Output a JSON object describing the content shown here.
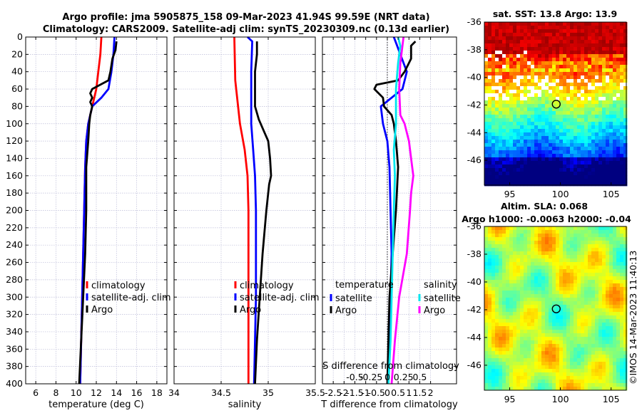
{
  "header": {
    "title_line1": "Argo profile: jma 5905875_158 09-Mar-2023 41.94S 99.59E (NRT data)",
    "title_line2": "Climatology: CARS2009. Satellite-adj clim: synTS_20230309.nc (0.13d earlier)"
  },
  "footer": {
    "stamp": "©IMOS 14-Mar-2023 11:40:13"
  },
  "colors": {
    "climatology": "#ff0000",
    "satellite": "#0000ff",
    "argo": "#000000",
    "satellite_s": "#00e5ee",
    "argo_s": "#ff00ff"
  },
  "chart_data": [
    {
      "type": "line",
      "name": "temperature",
      "xlabel": "temperature (deg C)",
      "ylabel": "",
      "xlim": [
        5,
        19
      ],
      "ylim": [
        400,
        0
      ],
      "x_ticks": [
        "6",
        "8",
        "10",
        "12",
        "14",
        "16",
        "18"
      ],
      "x_tick_values": [
        6,
        8,
        10,
        12,
        14,
        16,
        18
      ],
      "y_ticks": [
        "0",
        "20",
        "40",
        "60",
        "80",
        "100",
        "120",
        "140",
        "160",
        "180",
        "200",
        "220",
        "240",
        "260",
        "280",
        "300",
        "320",
        "340",
        "360",
        "380",
        "400"
      ],
      "y_tick_values": [
        0,
        20,
        40,
        60,
        80,
        100,
        120,
        140,
        160,
        180,
        200,
        220,
        240,
        260,
        280,
        300,
        320,
        340,
        360,
        380,
        400
      ],
      "legend": [
        "climatology",
        "satellite-adj. clim",
        "Argo"
      ],
      "series": [
        {
          "name": "climatology",
          "color": "#ff0000",
          "depth": [
            0,
            20,
            40,
            60,
            80,
            100,
            120,
            150,
            200,
            250,
            300,
            350,
            400
          ],
          "values": [
            12.5,
            12.4,
            12.2,
            12.0,
            11.6,
            11.2,
            11.0,
            10.9,
            10.8,
            10.7,
            10.6,
            10.5,
            10.4
          ]
        },
        {
          "name": "satellite-adj. clim",
          "color": "#0000ff",
          "depth": [
            0,
            20,
            40,
            60,
            70,
            80,
            90,
            100,
            120,
            150,
            200,
            250,
            300,
            350,
            400
          ],
          "values": [
            13.8,
            13.7,
            13.5,
            13.2,
            12.5,
            11.6,
            11.4,
            11.2,
            11.0,
            10.9,
            10.8,
            10.7,
            10.6,
            10.5,
            10.4
          ]
        },
        {
          "name": "Argo",
          "color": "#000000",
          "depth": [
            5,
            15,
            25,
            40,
            50,
            60,
            65,
            70,
            75,
            80,
            90,
            100,
            120,
            150,
            200,
            250,
            300,
            350,
            400
          ],
          "values": [
            14.0,
            13.9,
            13.6,
            13.4,
            13.2,
            11.6,
            11.4,
            11.6,
            11.4,
            11.6,
            11.4,
            11.3,
            11.2,
            11.0,
            11.0,
            10.9,
            10.7,
            10.5,
            10.3
          ]
        }
      ]
    },
    {
      "type": "line",
      "name": "salinity",
      "xlabel": "salinity",
      "xlim": [
        34.0,
        35.5
      ],
      "ylim": [
        400,
        0
      ],
      "x_ticks": [
        "34",
        "34.5",
        "35",
        "35.5"
      ],
      "x_tick_values": [
        34.0,
        34.5,
        35.0,
        35.5
      ],
      "legend": [
        "climatology",
        "satellite-adj. clim",
        "Argo"
      ],
      "series": [
        {
          "name": "climatology",
          "color": "#ff0000",
          "depth": [
            0,
            50,
            100,
            130,
            160,
            200,
            250,
            300,
            350,
            400
          ],
          "values": [
            34.64,
            34.65,
            34.7,
            34.75,
            34.78,
            34.79,
            34.79,
            34.79,
            34.79,
            34.79
          ]
        },
        {
          "name": "satellite-adj. clim",
          "color": "#0000ff",
          "depth": [
            0,
            5,
            40,
            100,
            130,
            160,
            200,
            250,
            300,
            350,
            400
          ],
          "values": [
            34.78,
            34.83,
            34.82,
            34.82,
            34.84,
            34.86,
            34.87,
            34.87,
            34.87,
            34.86,
            34.85
          ]
        },
        {
          "name": "Argo",
          "color": "#000000",
          "depth": [
            5,
            20,
            40,
            60,
            80,
            95,
            110,
            120,
            140,
            160,
            170,
            200,
            250,
            300,
            350,
            400
          ],
          "values": [
            34.88,
            34.88,
            34.86,
            34.86,
            34.86,
            34.9,
            34.96,
            35.0,
            35.02,
            35.03,
            35.01,
            34.98,
            34.94,
            34.91,
            34.88,
            34.86
          ]
        }
      ]
    },
    {
      "type": "line",
      "name": "difference",
      "xlabel": "T difference from climatology",
      "xlabel2": "S difference from climatology",
      "xlim": [
        -3,
        3.2
      ],
      "ylim": [
        400,
        0
      ],
      "x_ticks": [
        "-2.5",
        "-2",
        "-1.5",
        "-1",
        "-0.5",
        "0",
        "0.5",
        "1",
        "1.5",
        "2"
      ],
      "x_tick_values": [
        -2.5,
        -2,
        -1.5,
        -1,
        -0.5,
        0,
        0.5,
        1,
        1.5,
        2
      ],
      "s_ticks": [
        "-0.5",
        "-0.25",
        "0",
        "0.25",
        "0.5"
      ],
      "s_tick_values": [
        -1.5,
        -0.75,
        0,
        0.75,
        1.5
      ],
      "legend_temperature": [
        "temperature",
        "satellite",
        "Argo"
      ],
      "legend_salinity": [
        "salinity",
        "satellite",
        "Argo"
      ],
      "series": [
        {
          "name": "T satellite",
          "color": "#0000ff",
          "depth": [
            0,
            20,
            40,
            60,
            80,
            100,
            120,
            150,
            200,
            250,
            300,
            350,
            400
          ],
          "values": [
            0.3,
            0.6,
            0.9,
            0.7,
            -0.3,
            -0.2,
            0.0,
            0.1,
            0.15,
            0.2,
            0.15,
            0.1,
            0.05
          ]
        },
        {
          "name": "T Argo",
          "color": "#000000",
          "depth": [
            5,
            10,
            25,
            40,
            50,
            55,
            60,
            70,
            80,
            90,
            100,
            120,
            150,
            200,
            250,
            300,
            350,
            400
          ],
          "values": [
            1.3,
            1.1,
            1.1,
            0.8,
            0.5,
            -0.5,
            -0.6,
            -0.2,
            -0.15,
            0.2,
            0.3,
            0.4,
            0.5,
            0.4,
            0.25,
            0.1,
            0.05,
            0.0
          ]
        },
        {
          "name": "S satellite",
          "color": "#00e5ee",
          "depth": [
            0,
            10,
            30,
            60,
            100,
            130,
            160,
            200,
            250,
            300,
            350,
            400
          ],
          "values": [
            0.5,
            0.6,
            0.5,
            0.4,
            0.4,
            0.3,
            0.35,
            0.3,
            0.25,
            0.2,
            0.15,
            0.05
          ]
        },
        {
          "name": "S Argo",
          "color": "#ff00ff",
          "depth": [
            0,
            30,
            60,
            90,
            100,
            120,
            140,
            160,
            180,
            200,
            250,
            300,
            350,
            400
          ],
          "values": [
            0.75,
            0.6,
            0.55,
            0.6,
            0.8,
            1.0,
            1.1,
            1.2,
            1.1,
            1.05,
            0.9,
            0.55,
            0.35,
            0.2
          ]
        }
      ]
    },
    {
      "type": "heatmap",
      "name": "sst_map",
      "title": "sat. SST: 13.8 Argo: 13.9",
      "xlim": [
        92.5,
        106.5
      ],
      "ylim": [
        -47.8,
        -36
      ],
      "x_ticks": [
        "95",
        "100",
        "105"
      ],
      "x_tick_values": [
        95,
        100,
        105
      ],
      "y_ticks": [
        "-36",
        "-38",
        "-40",
        "-42",
        "-44",
        "-46"
      ],
      "y_tick_values": [
        -36,
        -38,
        -40,
        -42,
        -44,
        -46
      ],
      "marker": {
        "lon": 99.59,
        "lat": -41.94
      }
    },
    {
      "type": "heatmap",
      "name": "sla_map",
      "title_line1": "Altim. SLA: 0.068",
      "title_line2": "Argo h1000: -0.0063 h2000: -0.04",
      "xlim": [
        92.5,
        106.5
      ],
      "ylim": [
        -47.8,
        -36
      ],
      "x_ticks": [
        "95",
        "100",
        "105"
      ],
      "x_tick_values": [
        95,
        100,
        105
      ],
      "y_ticks": [
        "-36",
        "-38",
        "-40",
        "-42",
        "-44",
        "-46"
      ],
      "y_tick_values": [
        -36,
        -38,
        -40,
        -42,
        -44,
        -46
      ],
      "marker": {
        "lon": 99.59,
        "lat": -41.94
      }
    }
  ]
}
